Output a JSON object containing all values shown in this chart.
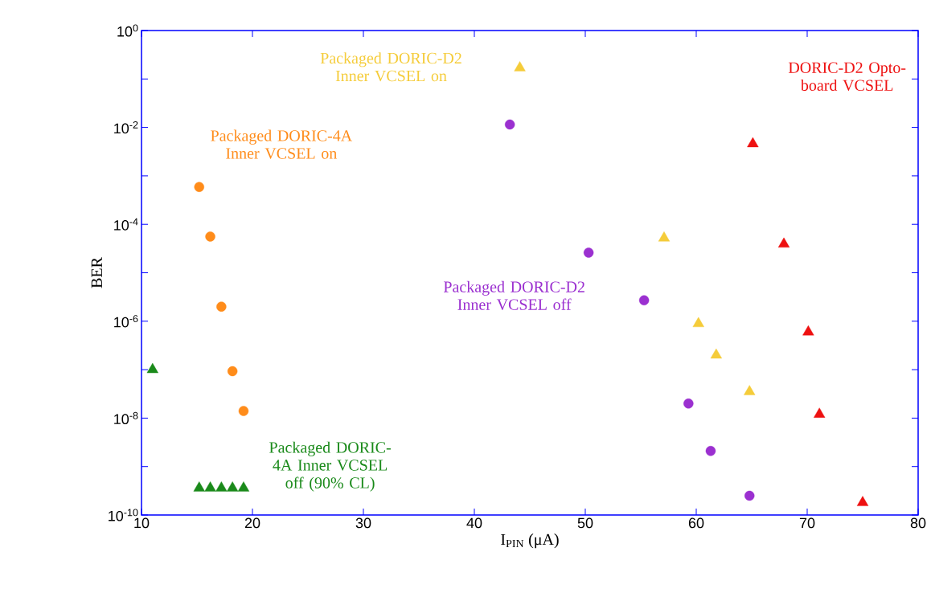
{
  "chart_data": {
    "type": "scatter",
    "xlabel": "I$_{PIN}$ (μA)",
    "ylabel": "BER",
    "xlim": [
      10,
      80
    ],
    "xticks": [
      10,
      20,
      30,
      40,
      50,
      60,
      70,
      80
    ],
    "ylim": [
      1e-10,
      1
    ],
    "log": "y",
    "yticks": [
      {
        "value": 1,
        "label": "10$^{0}$"
      },
      {
        "value": 0.1,
        "label": null
      },
      {
        "value": 0.01,
        "label": "10$^{-2}$"
      },
      {
        "value": 0.001,
        "label": null
      },
      {
        "value": 0.0001,
        "label": "10$^{-4}$"
      },
      {
        "value": 1e-05,
        "label": null
      },
      {
        "value": 1e-06,
        "label": "10$^{-6}$"
      },
      {
        "value": 1e-07,
        "label": null
      },
      {
        "value": 1e-08,
        "label": "10$^{-8}$"
      },
      {
        "value": 1e-09,
        "label": null
      },
      {
        "value": 1e-10,
        "label": "10$^{-10}$"
      }
    ],
    "grid": false,
    "legend": false,
    "series": [
      {
        "name": "Packaged DORIC-4A Inner VCSEL on",
        "color": "#ff8c1a",
        "marker": "circle",
        "x": [
          15.2,
          16.2,
          17.2,
          18.2,
          19.2
        ],
        "values": [
          0.00059,
          5.6e-05,
          2e-06,
          9.3e-08,
          1.4e-08
        ]
      },
      {
        "name": "Packaged DORIC-4A Inner VCSEL off (90% CL)",
        "color": "#1a8a1a",
        "marker": "triangle",
        "x": [
          11,
          15.2,
          16.2,
          17.2,
          18.2,
          19.2
        ],
        "values": [
          1e-07,
          3.6e-10,
          3.6e-10,
          3.6e-10,
          3.6e-10,
          3.6e-10
        ]
      },
      {
        "name": "Packaged DORIC-D2 Inner VCSEL on",
        "color": "#f5cc3a",
        "marker": "triangle",
        "x": [
          44.1,
          57.1,
          60.2,
          61.8,
          64.8
        ],
        "values": [
          0.17,
          5.2e-05,
          8.9e-07,
          2e-07,
          3.5e-08
        ]
      },
      {
        "name": "Packaged DORIC-D2 Inner VCSEL off",
        "color": "#9b30d0",
        "marker": "circle",
        "x": [
          43.2,
          50.3,
          55.3,
          59.3,
          61.3,
          64.8
        ],
        "values": [
          0.0115,
          2.6e-05,
          2.7e-06,
          2e-08,
          2.1e-09,
          2.5e-10
        ]
      },
      {
        "name": "DORIC-D2 Opto-board VCSEL",
        "color": "#ee1111",
        "marker": "triangle",
        "x": [
          65.1,
          67.9,
          70.1,
          71.1,
          75
        ],
        "values": [
          0.0046,
          3.9e-05,
          6e-07,
          1.2e-08,
          1.8e-10
        ]
      }
    ]
  }
}
